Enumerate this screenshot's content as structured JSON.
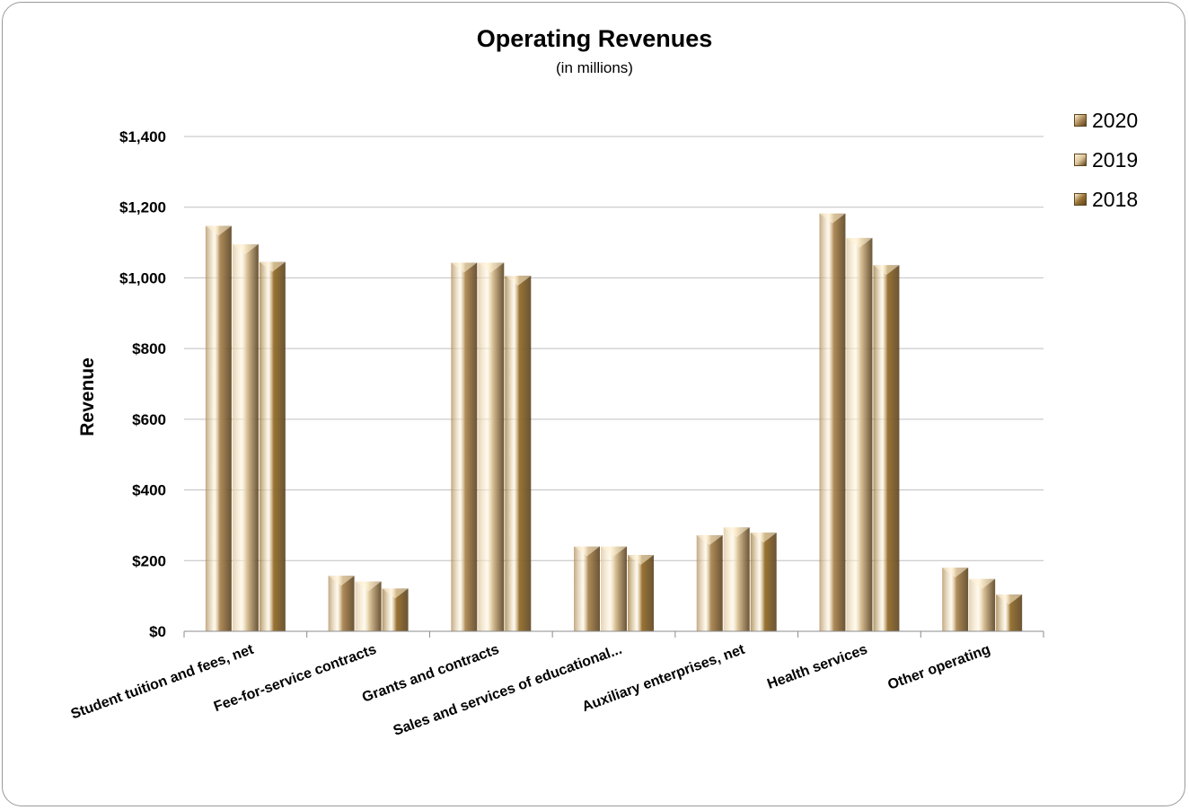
{
  "chart_data": {
    "type": "bar",
    "title": "Operating Revenues",
    "subtitle": "(in millions)",
    "xlabel": "",
    "ylabel": "Revenue",
    "ylim": [
      0,
      1400
    ],
    "yticks": [
      "$0",
      "$200",
      "$400",
      "$600",
      "$800",
      "$1,000",
      "$1,200",
      "$1,400"
    ],
    "categories": [
      "Student tuition and fees, net",
      "Fee-for-service contracts",
      "Grants and contracts",
      "Sales and services of educational...",
      "Auxiliary enterprises, net",
      "Health services",
      "Other operating"
    ],
    "series": [
      {
        "name": "2020",
        "color": "#b08d5a",
        "values": [
          1147,
          157,
          1043,
          240,
          272,
          1182,
          180
        ]
      },
      {
        "name": "2019",
        "color": "#dcc49a",
        "values": [
          1095,
          141,
          1043,
          240,
          294,
          1113,
          148
        ]
      },
      {
        "name": "2018",
        "color": "#9a7434",
        "values": [
          1045,
          121,
          1006,
          216,
          279,
          1036,
          104
        ]
      }
    ],
    "grid": true,
    "legend": "right"
  }
}
